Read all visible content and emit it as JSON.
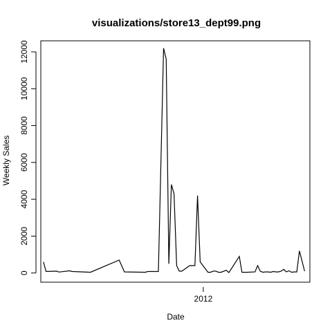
{
  "chart_data": {
    "type": "line",
    "title": "visualizations/store13_dept99.png",
    "xlabel": "Date",
    "ylabel": "Weekly Sales",
    "x_tick_labels": [
      {
        "label": "2012",
        "t": 61.2
      }
    ],
    "y_ticks": [
      0,
      2000,
      4000,
      6000,
      8000,
      10000,
      12000
    ],
    "y_tick_labels": [
      "0",
      "2000",
      "4000",
      "6000",
      "8000",
      "10000",
      "12000"
    ],
    "xlim": [
      -1,
      102
    ],
    "ylim": [
      -500,
      12600
    ],
    "grid": false,
    "series": [
      {
        "x": [
          0,
          1,
          5,
          6,
          10,
          11,
          18,
          29,
          31,
          39,
          40,
          44,
          46,
          47,
          48,
          49,
          50,
          51,
          52,
          53,
          56,
          58,
          59,
          60,
          63,
          64,
          65,
          66,
          67,
          68,
          70,
          71,
          75,
          76,
          78,
          81,
          82,
          83,
          84,
          85,
          86,
          87,
          88,
          89,
          90,
          91,
          92,
          93,
          94,
          95,
          96,
          97,
          98,
          100
        ],
        "y": [
          600,
          80,
          100,
          50,
          120,
          80,
          40,
          700,
          60,
          40,
          80,
          80,
          12200,
          11600,
          500,
          4800,
          4300,
          400,
          100,
          100,
          400,
          400,
          4200,
          600,
          40,
          40,
          100,
          100,
          40,
          40,
          150,
          20,
          900,
          40,
          40,
          60,
          400,
          100,
          40,
          60,
          60,
          40,
          80,
          60,
          60,
          100,
          200,
          60,
          120,
          40,
          60,
          60,
          1200,
          100
        ]
      }
    ]
  }
}
